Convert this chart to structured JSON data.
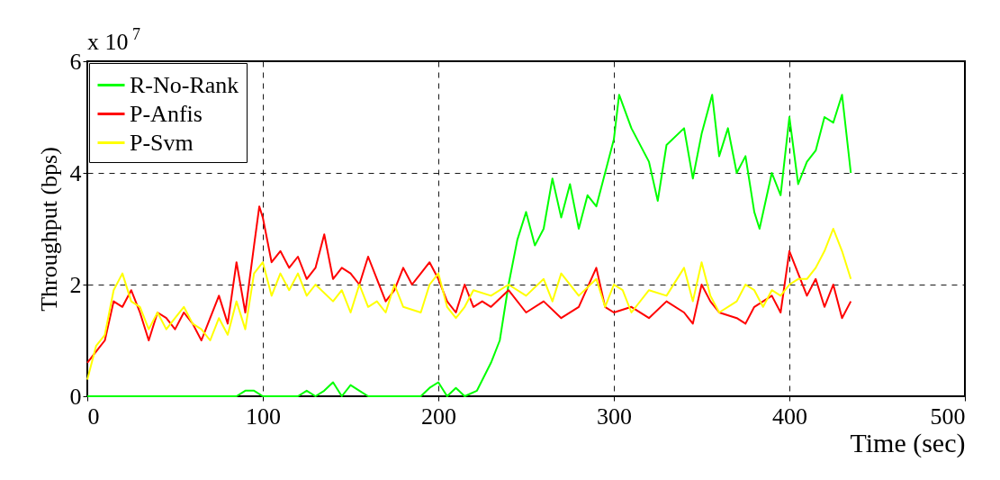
{
  "chart_data": {
    "type": "line",
    "xlabel": "Time (sec)",
    "ylabel": "Throughput (bps)",
    "annotations": [
      "x 10$^{7}$"
    ],
    "xlim": [
      0,
      500
    ],
    "xticks": [
      0,
      100,
      200,
      300,
      400,
      500
    ],
    "ylim": [
      0,
      6
    ],
    "yticks": [
      0,
      2,
      4,
      6
    ],
    "grid": true,
    "legend": "top left",
    "line_style": "solid",
    "series": [
      {
        "name": "R-No-Rank",
        "color": "#00ff00",
        "x": [
          0,
          85,
          90,
          95,
          100,
          105,
          120,
          125,
          130,
          135,
          140,
          145,
          150,
          155,
          160,
          190,
          195,
          200,
          205,
          210,
          215,
          222,
          230,
          235,
          240,
          245,
          250,
          255,
          260,
          265,
          270,
          275,
          280,
          285,
          290,
          295,
          300,
          303,
          310,
          320,
          325,
          330,
          340,
          345,
          350,
          356,
          360,
          365,
          370,
          375,
          380,
          383,
          390,
          395,
          400,
          405,
          410,
          415,
          420,
          425,
          430,
          435
        ],
        "values": [
          0,
          0,
          0.1,
          0.1,
          0,
          0,
          0,
          0.1,
          0,
          0.1,
          0.25,
          0,
          0.2,
          0.1,
          0,
          0,
          0.15,
          0.25,
          0,
          0.15,
          0,
          0.1,
          0.6,
          1.0,
          2.0,
          2.8,
          3.3,
          2.7,
          3.0,
          3.9,
          3.2,
          3.8,
          3.0,
          3.6,
          3.4,
          4.0,
          4.6,
          5.4,
          4.8,
          4.2,
          3.5,
          4.5,
          4.8,
          3.9,
          4.7,
          5.4,
          4.3,
          4.8,
          4.0,
          4.3,
          3.3,
          3.0,
          4.0,
          3.6,
          5.0,
          3.8,
          4.2,
          4.4,
          5.0,
          4.9,
          5.4,
          4.0
        ]
      },
      {
        "name": "P-Anfis",
        "color": "#ff0000",
        "x": [
          0,
          5,
          10,
          15,
          20,
          25,
          30,
          35,
          40,
          45,
          50,
          55,
          60,
          65,
          70,
          75,
          80,
          85,
          90,
          95,
          98,
          100,
          105,
          110,
          115,
          120,
          125,
          130,
          135,
          140,
          145,
          150,
          155,
          160,
          165,
          170,
          175,
          180,
          185,
          190,
          195,
          200,
          205,
          210,
          215,
          220,
          225,
          230,
          240,
          250,
          260,
          270,
          280,
          290,
          295,
          300,
          310,
          320,
          330,
          340,
          345,
          350,
          355,
          360,
          370,
          375,
          380,
          390,
          395,
          400,
          405,
          410,
          415,
          420,
          425,
          430,
          435
        ],
        "values": [
          0.6,
          0.8,
          1.0,
          1.7,
          1.6,
          1.9,
          1.5,
          1.0,
          1.5,
          1.4,
          1.2,
          1.5,
          1.3,
          1.0,
          1.4,
          1.8,
          1.3,
          2.4,
          1.5,
          2.7,
          3.4,
          3.2,
          2.4,
          2.6,
          2.3,
          2.5,
          2.1,
          2.3,
          2.9,
          2.1,
          2.3,
          2.2,
          2.0,
          2.5,
          2.1,
          1.7,
          1.9,
          2.3,
          2.0,
          2.2,
          2.4,
          2.1,
          1.7,
          1.5,
          2.0,
          1.6,
          1.7,
          1.6,
          1.9,
          1.5,
          1.7,
          1.4,
          1.6,
          2.3,
          1.6,
          1.5,
          1.6,
          1.4,
          1.7,
          1.5,
          1.3,
          2.0,
          1.7,
          1.5,
          1.4,
          1.3,
          1.6,
          1.8,
          1.5,
          2.6,
          2.2,
          1.8,
          2.1,
          1.6,
          2.0,
          1.4,
          1.7
        ]
      },
      {
        "name": "P-Svm",
        "color": "#ffff00",
        "x": [
          0,
          5,
          10,
          15,
          20,
          25,
          30,
          35,
          40,
          45,
          50,
          55,
          60,
          65,
          70,
          75,
          80,
          85,
          90,
          95,
          100,
          105,
          110,
          115,
          120,
          125,
          130,
          140,
          145,
          150,
          155,
          160,
          165,
          170,
          175,
          180,
          190,
          195,
          200,
          205,
          210,
          215,
          220,
          230,
          240,
          250,
          260,
          265,
          270,
          280,
          290,
          295,
          300,
          305,
          310,
          320,
          330,
          340,
          345,
          350,
          355,
          360,
          370,
          375,
          380,
          385,
          390,
          395,
          400,
          405,
          410,
          415,
          420,
          425,
          430,
          435
        ],
        "values": [
          0.3,
          0.9,
          1.1,
          1.9,
          2.2,
          1.7,
          1.6,
          1.2,
          1.5,
          1.2,
          1.4,
          1.6,
          1.3,
          1.2,
          1.0,
          1.4,
          1.1,
          1.7,
          1.2,
          2.2,
          2.4,
          1.8,
          2.2,
          1.9,
          2.2,
          1.8,
          2.0,
          1.7,
          1.9,
          1.5,
          2.0,
          1.6,
          1.7,
          1.5,
          2.0,
          1.6,
          1.5,
          2.0,
          2.2,
          1.6,
          1.4,
          1.6,
          1.9,
          1.8,
          2.0,
          1.8,
          2.1,
          1.7,
          2.2,
          1.8,
          2.1,
          1.6,
          2.0,
          1.9,
          1.5,
          1.9,
          1.8,
          2.3,
          1.7,
          2.4,
          1.8,
          1.5,
          1.7,
          2.0,
          1.9,
          1.6,
          1.9,
          1.8,
          2.0,
          2.1,
          2.1,
          2.3,
          2.6,
          3.0,
          2.6,
          2.1
        ]
      }
    ]
  }
}
